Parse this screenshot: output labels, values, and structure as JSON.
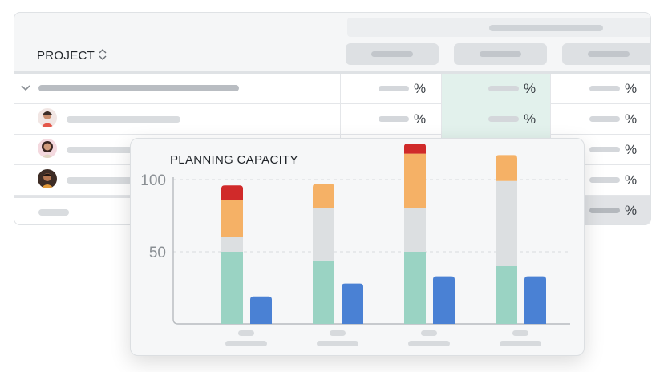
{
  "table": {
    "project_header": "PROJECT",
    "percent_symbol": "%",
    "rows": [
      {
        "type": "group",
        "avatar": "none"
      },
      {
        "type": "person",
        "avatar": "avatar-1"
      },
      {
        "type": "person",
        "avatar": "avatar-2"
      },
      {
        "type": "person",
        "avatar": "avatar-3"
      },
      {
        "type": "footer",
        "avatar": "none"
      }
    ]
  },
  "popup": {
    "title": "PLANNING CAPACITY"
  },
  "chart_data": {
    "type": "bar",
    "stacked": true,
    "categories": [
      "",
      "",
      "",
      ""
    ],
    "ylim": [
      0,
      127
    ],
    "yticks": [
      50,
      100
    ],
    "grid": "dashed horizontal",
    "series_stacked": [
      {
        "color": "#9ad3c3",
        "values": [
          50,
          44,
          50,
          40
        ]
      },
      {
        "color": "#dcdfe1",
        "values": [
          10,
          36,
          30,
          59
        ]
      },
      {
        "color": "#f5b166",
        "values": [
          26,
          17,
          38,
          18
        ]
      },
      {
        "color": "#d02a2a",
        "values": [
          10,
          0,
          7,
          0
        ]
      }
    ],
    "series_side": {
      "color": "#4a81d4",
      "values": [
        19,
        28,
        33,
        33
      ]
    }
  }
}
